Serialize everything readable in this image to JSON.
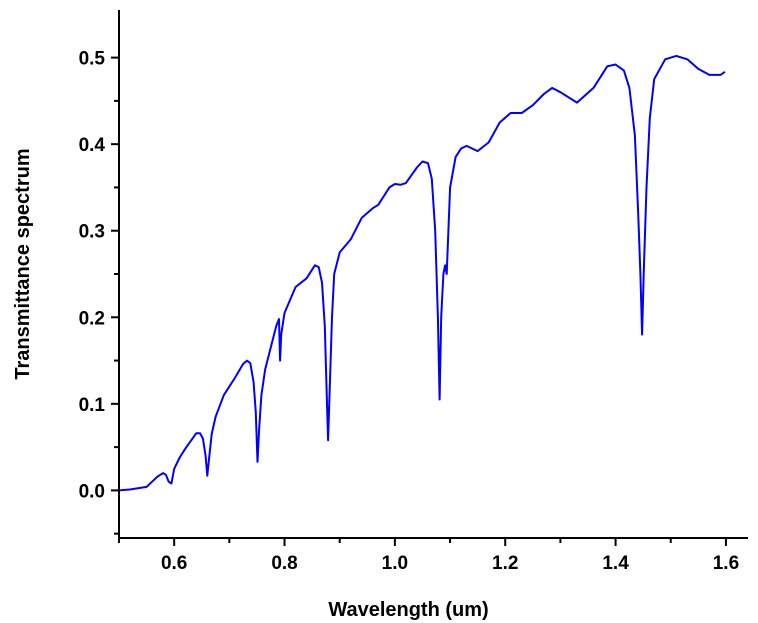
{
  "chart_data": {
    "type": "line",
    "title": "",
    "xlabel": "Wavelength (um)",
    "ylabel": "Transmittance spectrum",
    "xlim": [
      0.5,
      1.64
    ],
    "ylim": [
      -0.055,
      0.555
    ],
    "x_ticks": [
      0.6,
      0.8,
      1.0,
      1.2,
      1.4,
      1.6
    ],
    "x_tick_labels": [
      "0.6",
      "0.8",
      "1.0",
      "1.2",
      "1.4",
      "1.6"
    ],
    "x_minor_ticks": [
      0.5,
      0.7,
      0.9,
      1.1,
      1.3,
      1.5
    ],
    "y_ticks": [
      0.0,
      0.1,
      0.2,
      0.3,
      0.4,
      0.5
    ],
    "y_tick_labels": [
      "0.0",
      "0.1",
      "0.2",
      "0.3",
      "0.4",
      "0.5"
    ],
    "y_minor_ticks": [
      -0.05,
      0.05,
      0.15,
      0.25,
      0.35,
      0.45
    ],
    "grid": false,
    "legend": "none",
    "series": [
      {
        "color": "#0000ff",
        "points": [
          [
            0.5,
            0.0
          ],
          [
            0.52,
            0.001
          ],
          [
            0.54,
            0.003
          ],
          [
            0.55,
            0.004
          ],
          [
            0.56,
            0.01
          ],
          [
            0.57,
            0.016
          ],
          [
            0.58,
            0.02
          ],
          [
            0.585,
            0.018
          ],
          [
            0.59,
            0.01
          ],
          [
            0.595,
            0.008
          ],
          [
            0.6,
            0.025
          ],
          [
            0.61,
            0.038
          ],
          [
            0.62,
            0.048
          ],
          [
            0.63,
            0.057
          ],
          [
            0.64,
            0.066
          ],
          [
            0.647,
            0.066
          ],
          [
            0.652,
            0.06
          ],
          [
            0.657,
            0.04
          ],
          [
            0.66,
            0.017
          ],
          [
            0.663,
            0.035
          ],
          [
            0.668,
            0.065
          ],
          [
            0.675,
            0.085
          ],
          [
            0.69,
            0.11
          ],
          [
            0.71,
            0.13
          ],
          [
            0.725,
            0.146
          ],
          [
            0.732,
            0.15
          ],
          [
            0.738,
            0.147
          ],
          [
            0.744,
            0.125
          ],
          [
            0.748,
            0.09
          ],
          [
            0.751,
            0.033
          ],
          [
            0.754,
            0.07
          ],
          [
            0.758,
            0.11
          ],
          [
            0.765,
            0.14
          ],
          [
            0.775,
            0.165
          ],
          [
            0.785,
            0.19
          ],
          [
            0.79,
            0.198
          ],
          [
            0.792,
            0.15
          ],
          [
            0.794,
            0.18
          ],
          [
            0.8,
            0.205
          ],
          [
            0.82,
            0.235
          ],
          [
            0.84,
            0.245
          ],
          [
            0.855,
            0.26
          ],
          [
            0.862,
            0.258
          ],
          [
            0.868,
            0.24
          ],
          [
            0.873,
            0.19
          ],
          [
            0.877,
            0.1
          ],
          [
            0.879,
            0.058
          ],
          [
            0.882,
            0.12
          ],
          [
            0.886,
            0.2
          ],
          [
            0.89,
            0.25
          ],
          [
            0.9,
            0.275
          ],
          [
            0.92,
            0.29
          ],
          [
            0.94,
            0.315
          ],
          [
            0.96,
            0.326
          ],
          [
            0.97,
            0.33
          ],
          [
            0.99,
            0.35
          ],
          [
            1.0,
            0.354
          ],
          [
            1.01,
            0.353
          ],
          [
            1.02,
            0.355
          ],
          [
            1.04,
            0.373
          ],
          [
            1.05,
            0.38
          ],
          [
            1.06,
            0.378
          ],
          [
            1.067,
            0.36
          ],
          [
            1.073,
            0.3
          ],
          [
            1.078,
            0.2
          ],
          [
            1.081,
            0.105
          ],
          [
            1.084,
            0.2
          ],
          [
            1.088,
            0.25
          ],
          [
            1.091,
            0.26
          ],
          [
            1.094,
            0.25
          ],
          [
            1.097,
            0.3
          ],
          [
            1.1,
            0.35
          ],
          [
            1.11,
            0.385
          ],
          [
            1.12,
            0.395
          ],
          [
            1.13,
            0.398
          ],
          [
            1.15,
            0.392
          ],
          [
            1.17,
            0.402
          ],
          [
            1.19,
            0.425
          ],
          [
            1.21,
            0.436
          ],
          [
            1.23,
            0.436
          ],
          [
            1.25,
            0.445
          ],
          [
            1.27,
            0.458
          ],
          [
            1.285,
            0.465
          ],
          [
            1.3,
            0.46
          ],
          [
            1.33,
            0.448
          ],
          [
            1.36,
            0.465
          ],
          [
            1.385,
            0.49
          ],
          [
            1.4,
            0.492
          ],
          [
            1.415,
            0.485
          ],
          [
            1.425,
            0.465
          ],
          [
            1.435,
            0.41
          ],
          [
            1.441,
            0.32
          ],
          [
            1.445,
            0.25
          ],
          [
            1.448,
            0.18
          ],
          [
            1.451,
            0.25
          ],
          [
            1.456,
            0.35
          ],
          [
            1.462,
            0.43
          ],
          [
            1.47,
            0.475
          ],
          [
            1.49,
            0.498
          ],
          [
            1.51,
            0.502
          ],
          [
            1.53,
            0.498
          ],
          [
            1.55,
            0.487
          ],
          [
            1.57,
            0.48
          ],
          [
            1.59,
            0.48
          ],
          [
            1.597,
            0.483
          ]
        ]
      }
    ]
  }
}
